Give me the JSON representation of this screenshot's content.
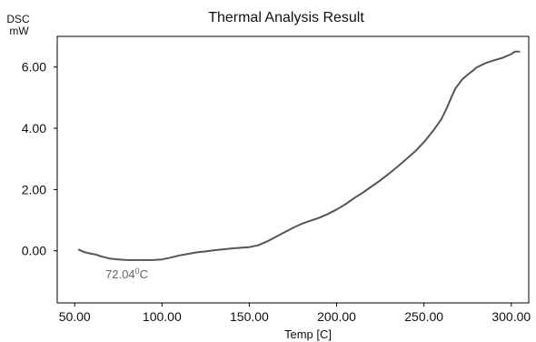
{
  "chart_data": {
    "type": "line",
    "title": "Thermal Analysis Result",
    "ylabel_line1": "DSC",
    "ylabel_line2": "mW",
    "xlabel": "Temp [C]",
    "xlim": [
      40,
      310
    ],
    "ylim": [
      -1.7,
      7.0
    ],
    "x_ticks": [
      50,
      100,
      150,
      200,
      250,
      300
    ],
    "x_tick_labels": [
      "50.00",
      "100.00",
      "150.00",
      "200.00",
      "250.00",
      "300.00"
    ],
    "y_ticks": [
      0,
      2,
      4,
      6
    ],
    "y_tick_labels": [
      "0.00",
      "2.00",
      "4.00",
      "6.00"
    ],
    "grid": false,
    "legend": "none",
    "line_color": "#555555",
    "annotation": {
      "text_main": "72.04",
      "text_sup": "0",
      "text_unit": "C",
      "x": 65,
      "y": -0.85
    },
    "series": [
      {
        "x": [
          52,
          55,
          58,
          62,
          65,
          70,
          75,
          80,
          85,
          90,
          95,
          100,
          105,
          110,
          115,
          120,
          125,
          130,
          135,
          140,
          145,
          150,
          155,
          160,
          165,
          170,
          175,
          180,
          185,
          190,
          195,
          200,
          205,
          210,
          215,
          220,
          225,
          230,
          235,
          240,
          245,
          250,
          255,
          260,
          263,
          266,
          268,
          270,
          272,
          275,
          278,
          280,
          285,
          290,
          295,
          300,
          302,
          305
        ],
        "y": [
          0.05,
          -0.03,
          -0.08,
          -0.12,
          -0.18,
          -0.25,
          -0.28,
          -0.3,
          -0.3,
          -0.3,
          -0.3,
          -0.28,
          -0.22,
          -0.15,
          -0.1,
          -0.05,
          -0.02,
          0.02,
          0.05,
          0.08,
          0.1,
          0.12,
          0.18,
          0.3,
          0.45,
          0.6,
          0.75,
          0.88,
          0.98,
          1.08,
          1.2,
          1.35,
          1.52,
          1.72,
          1.9,
          2.1,
          2.3,
          2.52,
          2.75,
          3.0,
          3.25,
          3.55,
          3.9,
          4.3,
          4.65,
          5.05,
          5.3,
          5.45,
          5.6,
          5.75,
          5.88,
          5.98,
          6.12,
          6.22,
          6.3,
          6.42,
          6.5,
          6.5
        ]
      }
    ]
  }
}
